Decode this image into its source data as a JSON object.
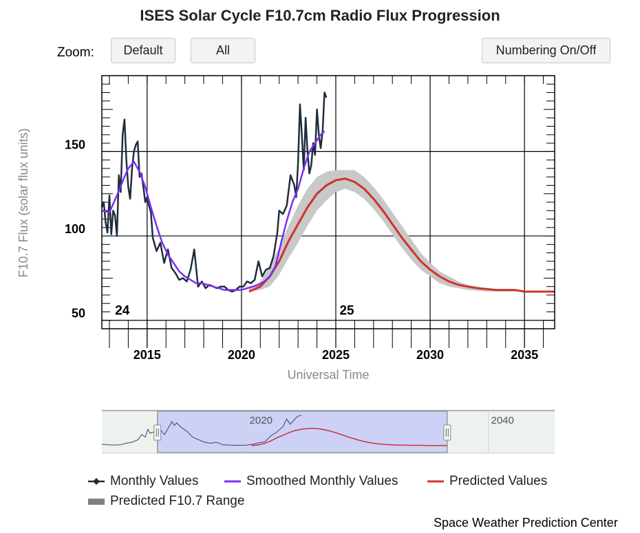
{
  "title": "ISES Solar Cycle F10.7cm Radio Flux Progression",
  "toolbar": {
    "zoom_label": "Zoom:",
    "default_label": "Default",
    "all_label": "All",
    "numbering_label": "Numbering On/Off"
  },
  "credit": "Space Weather Prediction Center",
  "colors": {
    "monthly": "#1f2d3d",
    "smoothed": "#7b2ff0",
    "predicted": "#d0312d",
    "range": "#c8c8c8",
    "navigator_selection": "#c5cbf6"
  },
  "legend": {
    "monthly": "Monthly Values",
    "smoothed": "Smoothed Monthly Values",
    "predicted": "Predicted Values",
    "range": "Predicted F10.7 Range"
  },
  "chart_data": {
    "type": "line",
    "title": "ISES Solar Cycle F10.7cm Radio Flux Progression",
    "xlabel": "Universal Time",
    "ylabel": "F10.7 Flux (solar flux units)",
    "xlim": [
      2012.6,
      2036.6
    ],
    "ylim": [
      45,
      195
    ],
    "x_ticks": [
      2015,
      2020,
      2025,
      2030,
      2035
    ],
    "y_ticks": [
      50,
      100,
      150
    ],
    "grid": true,
    "cycle_labels": [
      {
        "text": "24",
        "x": 2013.3,
        "y": 50
      },
      {
        "text": "25",
        "x": 2025.2,
        "y": 50
      }
    ],
    "series": [
      {
        "name": "Monthly Values",
        "x": [
          2012.6,
          2012.7,
          2012.8,
          2012.9,
          2013.0,
          2013.1,
          2013.2,
          2013.3,
          2013.4,
          2013.5,
          2013.6,
          2013.7,
          2013.8,
          2013.9,
          2014.0,
          2014.1,
          2014.2,
          2014.3,
          2014.4,
          2014.5,
          2014.6,
          2014.7,
          2014.8,
          2014.9,
          2015.0,
          2015.1,
          2015.2,
          2015.3,
          2015.5,
          2015.7,
          2015.9,
          2016.1,
          2016.3,
          2016.5,
          2016.7,
          2016.9,
          2017.1,
          2017.3,
          2017.5,
          2017.7,
          2017.9,
          2018.1,
          2018.3,
          2018.5,
          2018.7,
          2018.9,
          2019.1,
          2019.3,
          2019.5,
          2019.7,
          2019.9,
          2020.1,
          2020.3,
          2020.5,
          2020.7,
          2020.9,
          2021.1,
          2021.3,
          2021.5,
          2021.7,
          2021.9,
          2022.0,
          2022.2,
          2022.4,
          2022.6,
          2022.8,
          2022.9,
          2023.0,
          2023.1,
          2023.2,
          2023.3,
          2023.4,
          2023.5,
          2023.6,
          2023.7,
          2023.8,
          2023.9,
          2024.0,
          2024.1,
          2024.2,
          2024.3,
          2024.4,
          2024.5
        ],
        "values": [
          117,
          120,
          108,
          102,
          124,
          101,
          115,
          112,
          100,
          136,
          126,
          160,
          169,
          145,
          129,
          122,
          140,
          150,
          154,
          156,
          135,
          137,
          129,
          120,
          123,
          118,
          114,
          99,
          91,
          96,
          84,
          92,
          81,
          78,
          74,
          75,
          73,
          80,
          92,
          70,
          73,
          69,
          71,
          70,
          69,
          70,
          70,
          68,
          67,
          68,
          70,
          70,
          73,
          72,
          74,
          85,
          76,
          80,
          81,
          88,
          102,
          115,
          113,
          118,
          136,
          130,
          123,
          143,
          178,
          160,
          139,
          170,
          150,
          137,
          142,
          155,
          148,
          175,
          160,
          152,
          162,
          185,
          182
        ]
      },
      {
        "name": "Smoothed Monthly Values",
        "x": [
          2012.6,
          2013.0,
          2013.4,
          2013.8,
          2014.0,
          2014.3,
          2014.6,
          2014.9,
          2015.2,
          2015.5,
          2015.8,
          2016.1,
          2016.4,
          2016.7,
          2017.0,
          2017.3,
          2017.6,
          2017.9,
          2018.2,
          2018.5,
          2018.8,
          2019.1,
          2019.4,
          2019.7,
          2020.0,
          2020.3,
          2020.6,
          2020.9,
          2021.2,
          2021.5,
          2021.8,
          2022.1,
          2022.4,
          2022.7,
          2023.0,
          2023.3,
          2023.6,
          2023.9,
          2024.2,
          2024.4
        ],
        "values": [
          115,
          114,
          124,
          135,
          140,
          144,
          138,
          129,
          117,
          106,
          96,
          89,
          84,
          79,
          76,
          74,
          72,
          72,
          71,
          70,
          69,
          68,
          68,
          68,
          68,
          69,
          70,
          71,
          73,
          76,
          82,
          96,
          109,
          120,
          128,
          140,
          150,
          155,
          160,
          162
        ]
      },
      {
        "name": "Predicted Values",
        "x": [
          2020.4,
          2021.0,
          2021.5,
          2022.0,
          2022.5,
          2023.0,
          2023.5,
          2024.0,
          2024.5,
          2025.0,
          2025.5,
          2026.0,
          2026.5,
          2027.0,
          2027.5,
          2028.0,
          2028.5,
          2029.0,
          2029.5,
          2030.0,
          2030.5,
          2031.0,
          2031.5,
          2032.0,
          2032.5,
          2033.0,
          2033.5,
          2034.0,
          2034.5,
          2035.0,
          2036.6
        ],
        "values": [
          67,
          70,
          76,
          85,
          97,
          107,
          117,
          125,
          130,
          133,
          134,
          132,
          128,
          122,
          115,
          107,
          99,
          92,
          85,
          80,
          76,
          73,
          71,
          70,
          69,
          68.5,
          68,
          68,
          68,
          67,
          67
        ]
      },
      {
        "name": "Predicted F10.7 Range",
        "x": [
          2020.4,
          2021.0,
          2021.5,
          2022.0,
          2022.5,
          2023.0,
          2023.5,
          2024.0,
          2024.5,
          2025.0,
          2025.5,
          2026.0,
          2026.5,
          2027.0,
          2027.5,
          2028.0,
          2028.5,
          2029.0,
          2029.5,
          2030.0,
          2030.5,
          2031.0,
          2031.5,
          2032.0,
          2032.5,
          2033.0,
          2033.5,
          2034.0,
          2035.0,
          2036.6
        ],
        "upper": [
          69,
          73,
          82,
          93,
          106,
          118,
          128,
          135,
          138,
          139,
          139,
          139,
          135,
          129,
          122,
          114,
          106,
          98,
          90,
          84,
          79,
          76,
          73,
          71,
          70,
          69,
          68.5,
          68,
          67.5,
          67.5
        ],
        "lower": [
          67,
          68,
          70,
          77,
          87,
          96,
          106,
          115,
          121,
          126,
          128,
          126,
          122,
          116,
          109,
          101,
          93,
          86,
          80,
          76,
          72,
          70,
          69,
          68,
          67.5,
          67,
          67,
          67,
          67,
          67
        ]
      }
    ],
    "navigator": {
      "xlim": [
        2008.0,
        2045.5
      ],
      "ylim": [
        40,
        200
      ],
      "labels": [
        "2020",
        "2040"
      ],
      "label_values": [
        2020,
        2040
      ],
      "selection": [
        2012.6,
        2036.6
      ],
      "history_x": [
        2008.0,
        2008.5,
        2009.0,
        2009.5,
        2010.0,
        2010.5,
        2011.0,
        2011.3,
        2011.6,
        2011.8,
        2012.0,
        2012.3,
        2012.6,
        2012.9,
        2013.2,
        2013.5,
        2013.8,
        2014.0,
        2014.2,
        2014.5,
        2014.8,
        2015.1,
        2015.5,
        2016.0,
        2016.5,
        2017.0,
        2017.5,
        2018.0,
        2018.5,
        2019.0,
        2019.5,
        2020.0,
        2020.5,
        2021.0,
        2021.5,
        2022.0,
        2022.5,
        2023.0,
        2023.3,
        2023.6,
        2023.9,
        2024.2,
        2024.5
      ],
      "history_values": [
        72,
        70,
        69,
        70,
        76,
        80,
        90,
        110,
        100,
        130,
        115,
        120,
        105,
        125,
        110,
        135,
        160,
        145,
        155,
        140,
        130,
        120,
        100,
        90,
        80,
        76,
        80,
        70,
        69,
        68,
        68,
        69,
        72,
        78,
        82,
        105,
        120,
        140,
        170,
        150,
        165,
        180,
        185
      ]
    }
  }
}
